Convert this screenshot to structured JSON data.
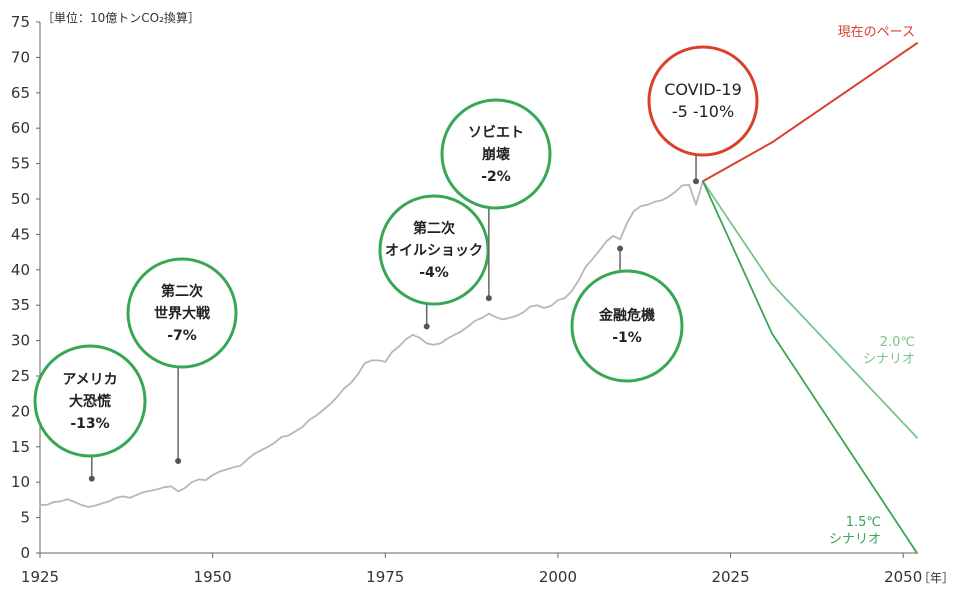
{
  "chart_data": {
    "type": "line",
    "unit_label": "［単位：10億トンCO₂換算］",
    "x_unit_label": "［年］",
    "xlim": [
      1925,
      2052
    ],
    "ylim": [
      0,
      75
    ],
    "x_ticks": [
      1925,
      1950,
      1975,
      2000,
      2025,
      2050
    ],
    "y_ticks": [
      0,
      5,
      10,
      15,
      20,
      25,
      30,
      35,
      40,
      45,
      50,
      55,
      60,
      65,
      70,
      75
    ],
    "colors": {
      "history": "#b7b7b7",
      "current_pace": "#d9412a",
      "scenario_2c": "#7cc38b",
      "scenario_15c": "#38a655",
      "bubble_green": "#38a655",
      "bubble_red": "#d9412a",
      "axis": "#666666",
      "stem": "#666666"
    },
    "series": [
      {
        "key": "history",
        "x": [
          1925,
          1926,
          1927,
          1928,
          1929,
          1930,
          1931,
          1932,
          1933,
          1934,
          1935,
          1936,
          1937,
          1938,
          1939,
          1940,
          1941,
          1942,
          1943,
          1944,
          1945,
          1946,
          1947,
          1948,
          1949,
          1950,
          1951,
          1952,
          1953,
          1954,
          1955,
          1956,
          1957,
          1958,
          1959,
          1960,
          1961,
          1962,
          1963,
          1964,
          1965,
          1966,
          1967,
          1968,
          1969,
          1970,
          1971,
          1972,
          1973,
          1974,
          1975,
          1976,
          1977,
          1978,
          1979,
          1980,
          1981,
          1982,
          1983,
          1984,
          1985,
          1986,
          1987,
          1988,
          1989,
          1990,
          1991,
          1992,
          1993,
          1994,
          1995,
          1996,
          1997,
          1998,
          1999,
          2000,
          2001,
          2002,
          2003,
          2004,
          2005,
          2006,
          2007,
          2008,
          2009,
          2010,
          2011,
          2012,
          2013,
          2014,
          2015,
          2016,
          2017,
          2018,
          2019,
          2020,
          2021
        ],
        "values": [
          6.8,
          6.8,
          7.2,
          7.3,
          7.6,
          7.2,
          6.8,
          6.5,
          6.7,
          7.0,
          7.3,
          7.8,
          8.0,
          7.8,
          8.2,
          8.6,
          8.8,
          9.0,
          9.3,
          9.4,
          8.7,
          9.2,
          10.0,
          10.4,
          10.3,
          11.0,
          11.5,
          11.8,
          12.1,
          12.3,
          13.2,
          14.0,
          14.5,
          15.0,
          15.6,
          16.4,
          16.6,
          17.2,
          17.8,
          18.8,
          19.4,
          20.2,
          21.0,
          22.0,
          23.2,
          24.0,
          25.2,
          26.8,
          27.2,
          27.2,
          27.0,
          28.4,
          29.2,
          30.2,
          30.8,
          30.4,
          29.6,
          29.4,
          29.6,
          30.3,
          30.8,
          31.3,
          32.0,
          32.8,
          33.2,
          33.8,
          33.3,
          33.0,
          33.2,
          33.5,
          34.0,
          34.8,
          35.0,
          34.6,
          34.9,
          35.7,
          36.0,
          37.0,
          38.5,
          40.4,
          41.5,
          42.7,
          44.0,
          44.8,
          44.3,
          46.6,
          48.3,
          49.0,
          49.2,
          49.6,
          49.8,
          50.3,
          51.0,
          51.9,
          52.0,
          49.2,
          52.5
        ]
      },
      {
        "key": "current_pace",
        "name": "現在のペース",
        "x": [
          2021,
          2031,
          2052
        ],
        "values": [
          52.5,
          58.0,
          72.0
        ]
      },
      {
        "key": "scenario_2c",
        "name": "2.0℃ シナリオ",
        "x": [
          2021,
          2031,
          2052
        ],
        "values": [
          52.5,
          38.0,
          16.3
        ]
      },
      {
        "key": "scenario_15c",
        "name": "1.5℃ シナリオ",
        "x": [
          2021,
          2031,
          2052
        ],
        "values": [
          52.5,
          31.0,
          0.0
        ]
      }
    ],
    "series_labels": {
      "current_pace": {
        "lines": [
          "現在のペース"
        ]
      },
      "scenario_2c": {
        "lines": [
          "2.0℃",
          "シナリオ"
        ]
      },
      "scenario_15c": {
        "lines": [
          "1.5℃",
          "シナリオ"
        ]
      }
    },
    "annotations": [
      {
        "id": "great-depression",
        "x": 1932.5,
        "y": 10.5,
        "color": "green",
        "lines": [
          "アメリカ",
          "大恐慌",
          "-13%"
        ]
      },
      {
        "id": "ww2",
        "x": 1945,
        "y": 13.0,
        "color": "green",
        "lines": [
          "第二次",
          "世界大戦",
          "-7%"
        ]
      },
      {
        "id": "oil-shock-2",
        "x": 1981,
        "y": 32.0,
        "color": "green",
        "lines": [
          "第二次",
          "オイルショック",
          "-4%"
        ]
      },
      {
        "id": "soviet-collapse",
        "x": 1990,
        "y": 36.0,
        "color": "green",
        "lines": [
          "ソビエト",
          "崩壊",
          "-2%"
        ]
      },
      {
        "id": "financial-crisis",
        "x": 2009,
        "y": 43.0,
        "color": "green",
        "lines": [
          "金融危機",
          "-1%"
        ]
      },
      {
        "id": "covid-19",
        "x": 2020,
        "y": 52.5,
        "color": "red",
        "lines": [
          "COVID-19",
          "-5 -10%"
        ]
      }
    ]
  }
}
